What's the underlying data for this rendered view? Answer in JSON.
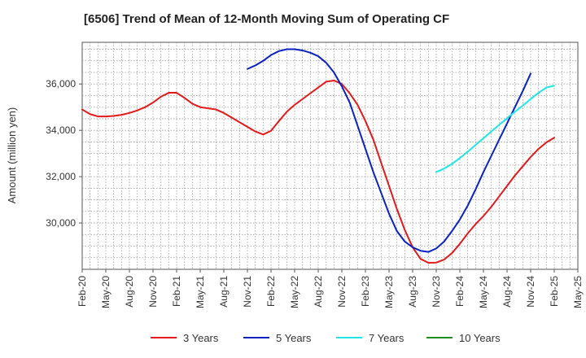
{
  "chart_data": {
    "type": "line",
    "title": "[6506]  Trend of Mean of 12-Month Moving Sum of Operating CF",
    "xlabel": "",
    "ylabel": "Amount (million yen)",
    "ylim": [
      28000,
      37800
    ],
    "yticks": [
      30000,
      32000,
      34000,
      36000
    ],
    "ytick_labels": [
      "30,000",
      "32,000",
      "34,000",
      "36,000"
    ],
    "x_start": "Feb-20",
    "x_end": "May-25",
    "x_ticks": [
      "Feb-20",
      "May-20",
      "Aug-20",
      "Nov-20",
      "Feb-21",
      "May-21",
      "Aug-21",
      "Nov-21",
      "Feb-22",
      "May-22",
      "Aug-22",
      "Nov-22",
      "Feb-23",
      "May-23",
      "Aug-23",
      "Nov-23",
      "Feb-24",
      "May-24",
      "Aug-24",
      "Nov-24",
      "Feb-25",
      "May-25"
    ],
    "grid": true,
    "legend_position": "bottom",
    "series": [
      {
        "name": "3 Years",
        "color": "#e31a1c",
        "start_month": 0,
        "values": [
          34900,
          34700,
          34600,
          34600,
          34620,
          34670,
          34750,
          34860,
          35000,
          35200,
          35450,
          35620,
          35620,
          35400,
          35150,
          35000,
          34950,
          34900,
          34750,
          34550,
          34350,
          34150,
          33950,
          33820,
          33980,
          34400,
          34800,
          35100,
          35350,
          35600,
          35850,
          36100,
          36150,
          36000,
          35600,
          35100,
          34400,
          33600,
          32600,
          31600,
          30600,
          29700,
          28950,
          28450,
          28280,
          28290,
          28420,
          28700,
          29100,
          29550,
          29950,
          30300,
          30700,
          31150,
          31600,
          32050,
          32450,
          32850,
          33200,
          33480,
          33680
        ]
      },
      {
        "name": "5 Years",
        "color": "#0a22c0",
        "start_month": 21,
        "values": [
          36650,
          36800,
          37000,
          37250,
          37420,
          37500,
          37500,
          37450,
          37350,
          37200,
          36920,
          36500,
          35900,
          35200,
          34200,
          33200,
          32200,
          31300,
          30400,
          29650,
          29200,
          28950,
          28800,
          28750,
          28900,
          29200,
          29650,
          30150,
          30750,
          31450,
          32200,
          32900,
          33600,
          34300,
          35000,
          35700,
          36450
        ]
      },
      {
        "name": "7 Years",
        "color": "#22e5e5",
        "start_month": 45,
        "values": [
          32200,
          32350,
          32550,
          32800,
          33080,
          33370,
          33660,
          33950,
          34240,
          34520,
          34800,
          35070,
          35350,
          35620,
          35850,
          35930
        ]
      },
      {
        "name": "10 Years",
        "color": "#1e8c1e",
        "start_month": 0,
        "values": []
      }
    ]
  }
}
